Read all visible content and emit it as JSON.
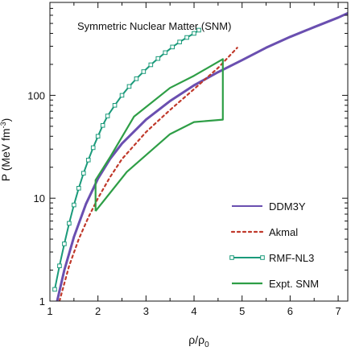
{
  "chart_data": {
    "type": "line",
    "title": "",
    "annotation": "Symmetric Nuclear Matter (SNM)",
    "xlabel": "ρ/ρ",
    "xlabel_sub": "0",
    "ylabel": "P (MeV fm",
    "ylabel_sup": "-3",
    "ylabel_close": ")",
    "xlim": [
      1,
      7.2
    ],
    "ylim": [
      1,
      800
    ],
    "yscale": "log",
    "x_ticks": [
      1,
      2,
      3,
      4,
      5,
      6,
      7
    ],
    "x_tick_labels": [
      "1",
      "2",
      "3",
      "4",
      "5",
      "6",
      "7"
    ],
    "y_ticks": [
      1,
      10,
      100
    ],
    "y_tick_labels": [
      "1",
      "10",
      "100"
    ],
    "grid": false,
    "legend_position": "bottom-right",
    "series": [
      {
        "name": "DDM3Y",
        "style": "solid",
        "color": "#6a4fb0",
        "x": [
          1.15,
          1.3,
          1.5,
          1.75,
          2.0,
          2.25,
          2.5,
          3.0,
          3.5,
          4.0,
          4.5,
          5.0,
          5.5,
          6.0,
          6.5,
          7.0,
          7.2
        ],
        "y": [
          1.0,
          2.0,
          4.2,
          8.8,
          15.5,
          24,
          34,
          58,
          88,
          125,
          168,
          220,
          290,
          370,
          460,
          570,
          630
        ]
      },
      {
        "name": "Akmal",
        "style": "dotted",
        "color": "#c0392b",
        "x": [
          1.2,
          1.4,
          1.6,
          1.8,
          2.0,
          2.25,
          2.5,
          3.0,
          3.5,
          4.0,
          4.5,
          4.9
        ],
        "y": [
          1.0,
          2.2,
          4.0,
          6.5,
          10,
          16,
          24,
          44,
          72,
          115,
          185,
          290
        ]
      },
      {
        "name": "RMF-NL3",
        "style": "solid-markers",
        "color": "#1a9a7a",
        "x": [
          1.1,
          1.2,
          1.3,
          1.4,
          1.5,
          1.6,
          1.7,
          1.8,
          1.9,
          2.0,
          2.1,
          2.2,
          2.35,
          2.5,
          2.65,
          2.8,
          2.95,
          3.1,
          3.25,
          3.4,
          3.55,
          3.7,
          3.85,
          4.0,
          4.1
        ],
        "y": [
          1.3,
          2.2,
          3.6,
          5.7,
          8.6,
          12.5,
          17.5,
          23.5,
          31,
          40,
          51,
          63,
          80,
          100,
          122,
          145,
          170,
          198,
          228,
          260,
          295,
          330,
          365,
          400,
          430
        ]
      },
      {
        "name": "Expt. SNM",
        "style": "solid-band",
        "color": "#2e9e46",
        "x": [
          1.95,
          1.95,
          2.25,
          2.75,
          3.5,
          4.0,
          4.6,
          4.6,
          4.0,
          3.5,
          2.6,
          1.95
        ],
        "y": [
          7.5,
          15,
          25,
          62,
          118,
          155,
          225,
          58,
          55,
          42,
          18,
          7.5
        ]
      }
    ]
  }
}
